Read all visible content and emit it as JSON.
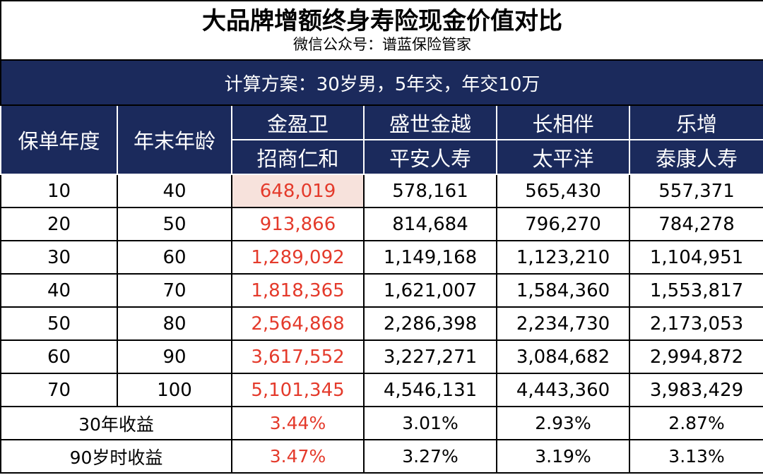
{
  "title": "大品牌增额终身寿险现金价值对比",
  "subtitle": "微信公众号：谱蓝保险管家",
  "plan": "计算方案：30岁男，5年交，年交10万",
  "header": {
    "policy_year": "保单年度",
    "age_end": "年末年龄",
    "products": [
      {
        "name": "金盈卫",
        "company": "招商仁和"
      },
      {
        "name": "盛世金越",
        "company": "平安人寿"
      },
      {
        "name": "长相伴",
        "company": "太平洋"
      },
      {
        "name": "乐增",
        "company": "泰康人寿"
      }
    ]
  },
  "rows": [
    {
      "year": "10",
      "age": "40",
      "values": [
        "648,019",
        "578,161",
        "565,430",
        "557,371"
      ]
    },
    {
      "year": "20",
      "age": "50",
      "values": [
        "913,866",
        "814,684",
        "796,270",
        "784,278"
      ]
    },
    {
      "year": "30",
      "age": "60",
      "values": [
        "1,289,092",
        "1,149,168",
        "1,123,210",
        "1,104,951"
      ]
    },
    {
      "year": "40",
      "age": "70",
      "values": [
        "1,818,365",
        "1,621,007",
        "1,584,360",
        "1,553,817"
      ]
    },
    {
      "year": "50",
      "age": "80",
      "values": [
        "2,564,868",
        "2,286,398",
        "2,234,730",
        "2,173,053"
      ]
    },
    {
      "year": "60",
      "age": "90",
      "values": [
        "3,617,552",
        "3,227,271",
        "3,084,682",
        "2,994,872"
      ]
    },
    {
      "year": "70",
      "age": "100",
      "values": [
        "5,101,345",
        "4,546,131",
        "4,443,360",
        "3,983,429"
      ]
    }
  ],
  "yields": [
    {
      "label": "30年收益",
      "values": [
        "3.44%",
        "3.01%",
        "2.93%",
        "2.87%"
      ]
    },
    {
      "label": "90岁时收益",
      "values": [
        "3.47%",
        "3.27%",
        "3.19%",
        "3.13%"
      ]
    }
  ],
  "colors": {
    "header_bg": "#1b2a5c",
    "highlight_text": "#e43a2b",
    "highlight_bg": "#f7e2dc"
  }
}
